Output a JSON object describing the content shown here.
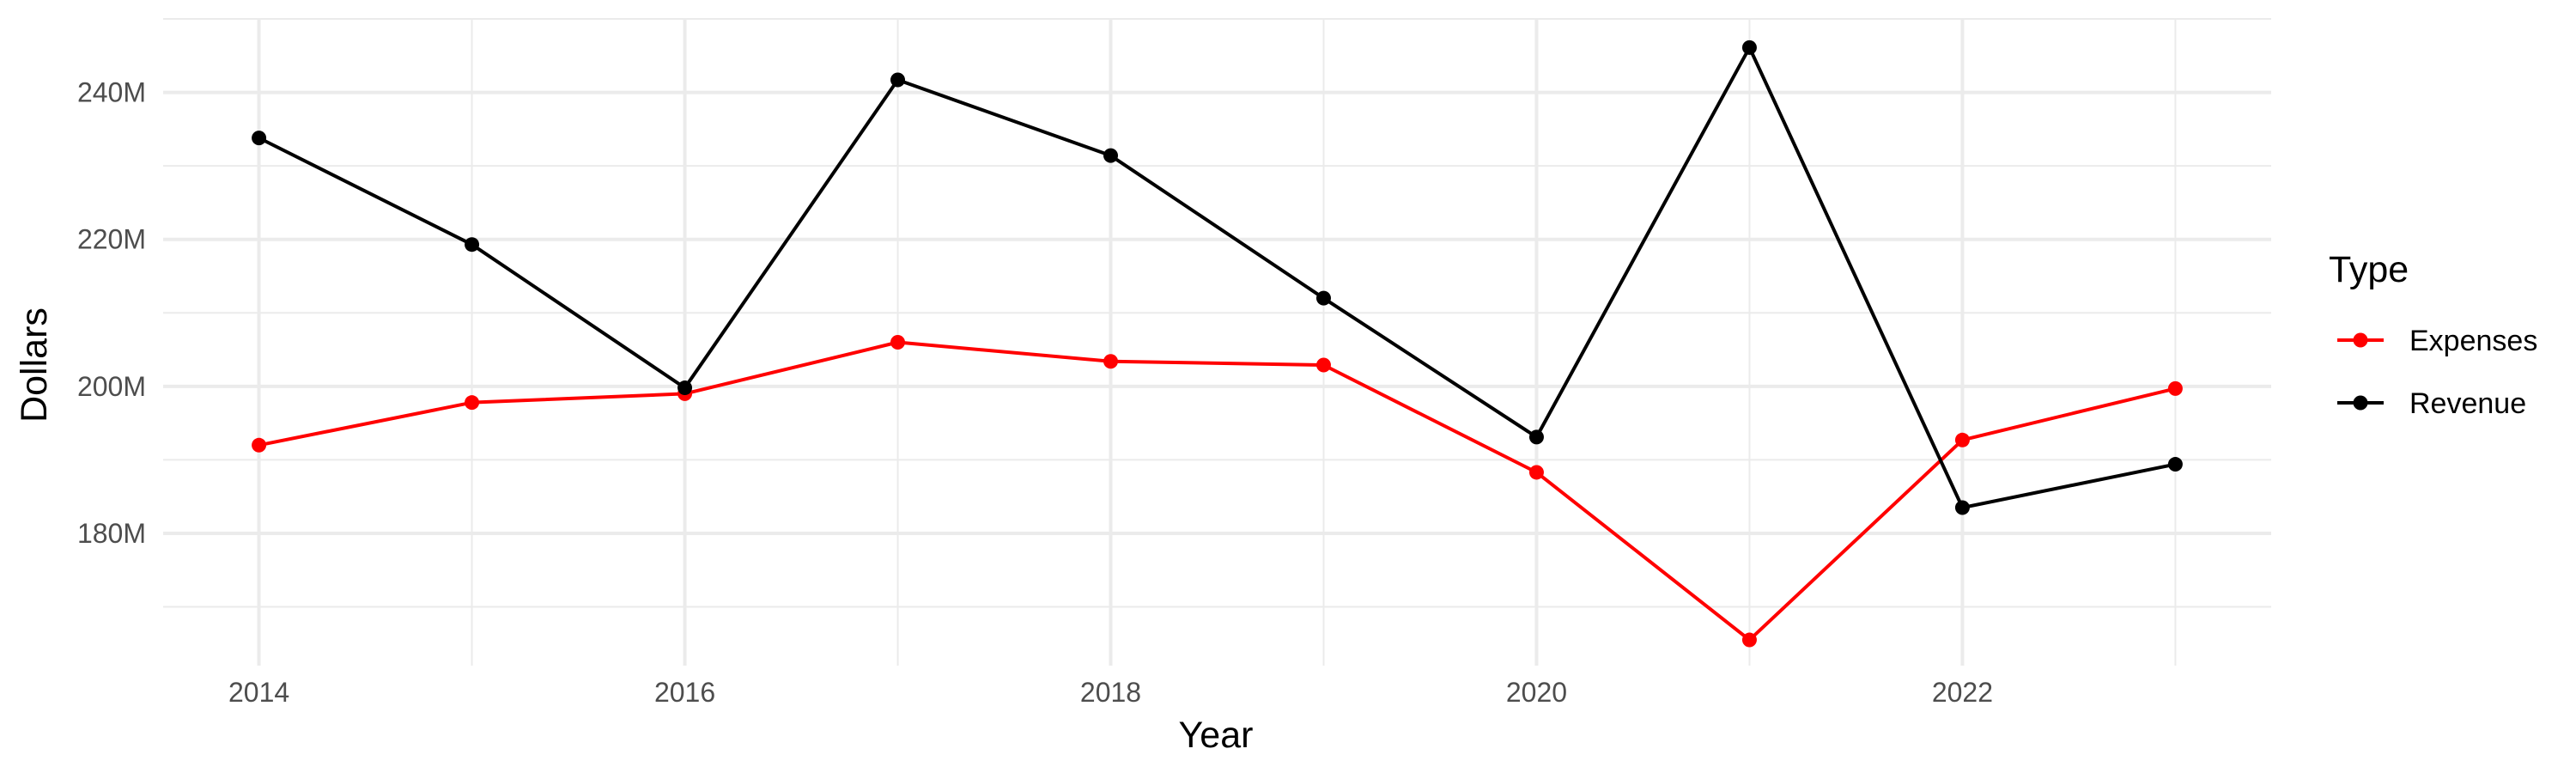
{
  "chart_data": {
    "type": "line",
    "title": "",
    "xlabel": "Year",
    "ylabel": "Dollars",
    "x": [
      2014,
      2015,
      2016,
      2017,
      2018,
      2019,
      2020,
      2021,
      2022,
      2023
    ],
    "xticks": [
      2014,
      2016,
      2018,
      2020,
      2022
    ],
    "xtick_labels": [
      "2014",
      "2016",
      "2018",
      "2020",
      "2022"
    ],
    "yticks": [
      180000000,
      200000000,
      220000000,
      240000000
    ],
    "ytick_labels": [
      "180M",
      "200M",
      "220M",
      "240M"
    ],
    "xlim": [
      2013.55,
      2023.45
    ],
    "ylim": [
      162000000,
      250000000
    ],
    "grid": true,
    "legend": {
      "title": "Type",
      "position": "right"
    },
    "series": [
      {
        "name": "Expenses",
        "color": "#ff0000",
        "values": [
          192000000,
          197800000,
          199000000,
          206000000,
          203400000,
          202900000,
          188300000,
          165500000,
          192700000,
          199700000
        ]
      },
      {
        "name": "Revenue",
        "color": "#000000",
        "values": [
          233800000,
          219300000,
          199800000,
          241700000,
          231400000,
          212000000,
          193100000,
          246100000,
          183500000,
          189400000
        ]
      }
    ]
  }
}
